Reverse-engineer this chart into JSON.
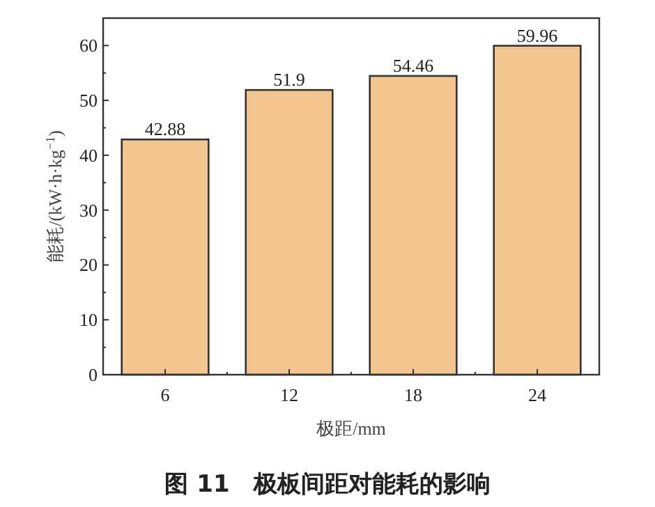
{
  "chart_data": {
    "type": "bar",
    "title": "图 11　极板间距对能耗的影响",
    "xlabel": "极距/mm",
    "ylabel": "能耗/(kW·h·kg$^{−1}$)",
    "categories": [
      "6",
      "12",
      "18",
      "24"
    ],
    "values": [
      42.88,
      51.9,
      54.46,
      59.96
    ],
    "color": "#f2c48e",
    "ylim": [
      0,
      65
    ],
    "yticks": [
      0,
      10,
      20,
      30,
      40,
      50,
      60
    ],
    "data_labels": true,
    "grid": false
  }
}
